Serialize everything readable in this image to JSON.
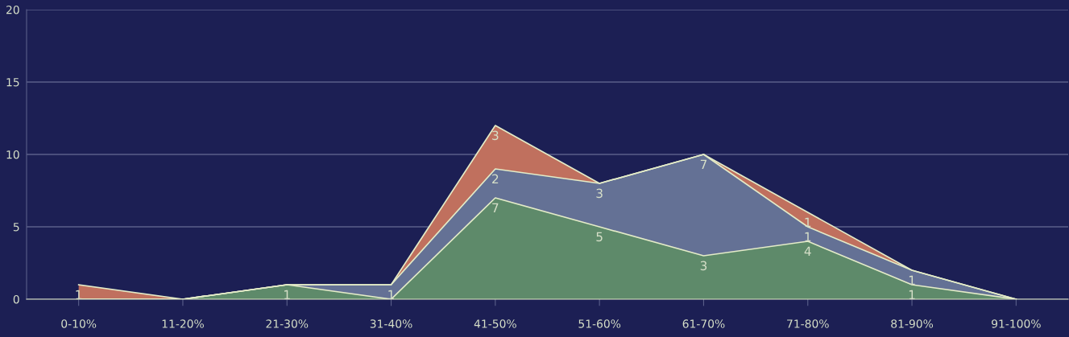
{
  "chart_data": {
    "type": "area",
    "stacked": true,
    "categories": [
      "0-10%",
      "11-20%",
      "21-30%",
      "31-40%",
      "41-50%",
      "51-60%",
      "61-70%",
      "71-80%",
      "81-90%",
      "91-100%"
    ],
    "series": [
      {
        "color": "#5e8a6a",
        "values": [
          0,
          0,
          1,
          0,
          7,
          5,
          3,
          4,
          1,
          0
        ],
        "value_labels": [
          null,
          null,
          "1",
          null,
          "7",
          "5",
          "3",
          "4",
          "1",
          null
        ]
      },
      {
        "color": "#647195",
        "values": [
          0,
          0,
          0,
          1,
          2,
          3,
          7,
          1,
          1,
          0
        ],
        "value_labels": [
          null,
          null,
          null,
          "1",
          "2",
          "3",
          "7",
          "1",
          "1",
          null
        ]
      },
      {
        "color": "#c0705e",
        "values": [
          1,
          0,
          0,
          0,
          3,
          0,
          0,
          1,
          0,
          0
        ],
        "value_labels": [
          "1",
          null,
          null,
          null,
          "3",
          null,
          null,
          "1",
          null,
          null
        ]
      }
    ],
    "ylim": [
      0,
      20
    ],
    "yticks": [
      0,
      5,
      10,
      15,
      20
    ],
    "grid": "y",
    "legend": false
  }
}
